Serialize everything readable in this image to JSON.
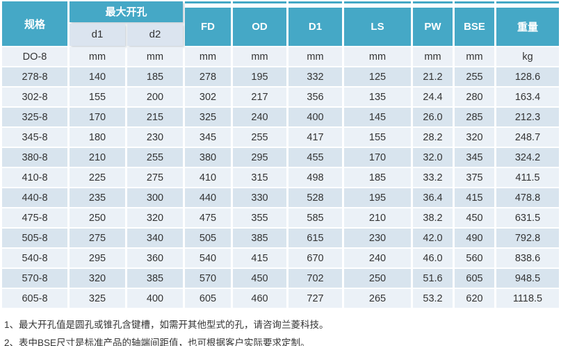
{
  "table": {
    "header": {
      "spec_label": "规格",
      "max_opening_label": "最大开孔",
      "sub_d1": "d1",
      "sub_d2": "d2",
      "cols": [
        "FD",
        "OD",
        "D1",
        "LS",
        "PW",
        "BSE",
        "重量"
      ]
    },
    "units_row": {
      "spec": "DO-8",
      "values": [
        "mm",
        "mm",
        "mm",
        "mm",
        "mm",
        "mm",
        "mm",
        "mm",
        "kg"
      ]
    },
    "rows": [
      {
        "spec": "278-8",
        "values": [
          "140",
          "185",
          "278",
          "195",
          "332",
          "125",
          "21.2",
          "255",
          "128.6"
        ]
      },
      {
        "spec": "302-8",
        "values": [
          "155",
          "200",
          "302",
          "217",
          "356",
          "135",
          "24.4",
          "280",
          "163.4"
        ]
      },
      {
        "spec": "325-8",
        "values": [
          "170",
          "215",
          "325",
          "240",
          "400",
          "145",
          "26.0",
          "285",
          "212.3"
        ]
      },
      {
        "spec": "345-8",
        "values": [
          "180",
          "230",
          "345",
          "255",
          "417",
          "155",
          "28.2",
          "320",
          "248.7"
        ]
      },
      {
        "spec": "380-8",
        "values": [
          "210",
          "255",
          "380",
          "295",
          "455",
          "170",
          "32.0",
          "345",
          "324.2"
        ]
      },
      {
        "spec": "410-8",
        "values": [
          "225",
          "275",
          "410",
          "315",
          "498",
          "185",
          "33.2",
          "375",
          "411.5"
        ]
      },
      {
        "spec": "440-8",
        "values": [
          "235",
          "300",
          "440",
          "330",
          "528",
          "195",
          "36.4",
          "415",
          "478.8"
        ]
      },
      {
        "spec": "475-8",
        "values": [
          "250",
          "320",
          "475",
          "355",
          "585",
          "210",
          "38.2",
          "450",
          "631.5"
        ]
      },
      {
        "spec": "505-8",
        "values": [
          "275",
          "340",
          "505",
          "385",
          "615",
          "230",
          "42.0",
          "490",
          "792.8"
        ]
      },
      {
        "spec": "540-8",
        "values": [
          "295",
          "360",
          "540",
          "415",
          "670",
          "240",
          "46.0",
          "560",
          "838.6"
        ]
      },
      {
        "spec": "570-8",
        "values": [
          "320",
          "385",
          "570",
          "450",
          "702",
          "250",
          "51.6",
          "605",
          "948.5"
        ]
      },
      {
        "spec": "605-8",
        "values": [
          "325",
          "400",
          "605",
          "460",
          "727",
          "265",
          "53.2",
          "620",
          "1118.5"
        ]
      }
    ]
  },
  "notes": [
    "1、最大开孔值是圆孔或锥孔含键槽，如需开其他型式的孔，请咨询兰菱科技。",
    "2、表中BSE尺寸是标准产品的轴端间距值，也可根据客户实际要求定制。"
  ],
  "colors": {
    "header_bg": "#45A8C6",
    "header_text": "#FFFFFF",
    "subheader_bg": "#DBE4EF",
    "unit_row_bg": "#ECF1F7",
    "row_odd_bg": "#D8E4EE",
    "row_even_bg": "#EBF1F7",
    "body_text": "#333333"
  }
}
